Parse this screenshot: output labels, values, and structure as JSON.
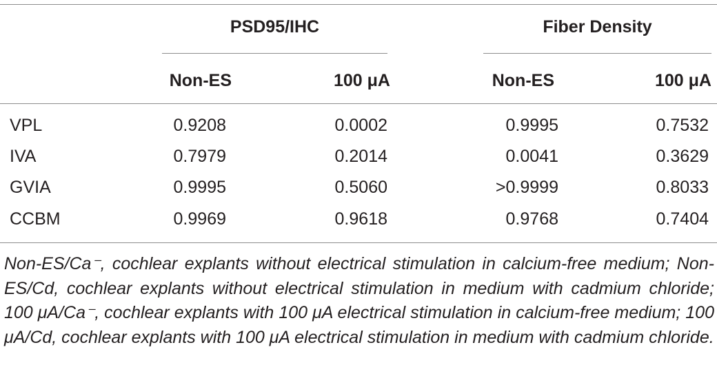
{
  "table": {
    "group_headers": [
      "PSD95/IHC",
      "Fiber Density"
    ],
    "sub_headers": [
      "Non-ES",
      "100 μA",
      "Non-ES",
      "100 μA"
    ],
    "rows": [
      {
        "label": "VPL",
        "values": [
          "0.9208",
          "0.0002",
          "0.9995",
          "0.7532"
        ]
      },
      {
        "label": "IVA",
        "values": [
          "0.7979",
          "0.2014",
          "0.0041",
          "0.3629"
        ]
      },
      {
        "label": "GVIA",
        "values": [
          "0.9995",
          "0.5060",
          ">0.9999",
          "0.8033"
        ]
      },
      {
        "label": "CCBM",
        "values": [
          "0.9969",
          "0.9618",
          "0.9768",
          "0.7404"
        ]
      }
    ]
  },
  "footnote": "Non-ES/Ca⁻, cochlear explants without electrical stimulation in calcium-free medium; Non-ES/Cd, cochlear explants without electrical stimulation in medium with cadmium chloride; 100 μA/Ca⁻, cochlear explants with 100 μA electrical stimulation in calcium-free medium; 100 μA/Cd, cochlear explants with 100 μA electrical stimulation in medium with cadmium chloride."
}
